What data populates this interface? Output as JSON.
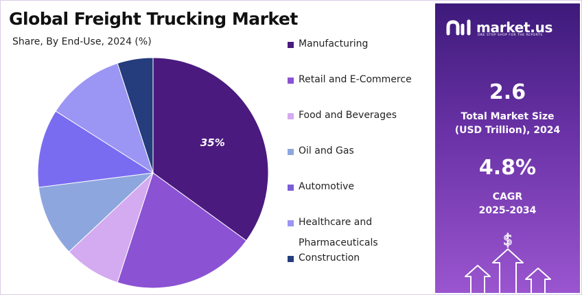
{
  "header": {
    "title": "Global Freight Trucking Market",
    "subtitle": "Share, By End-Use, 2024 (%)"
  },
  "brand": {
    "logo_text": "market.us",
    "tagline": "ONE STOP SHOP FOR THE REPORTS",
    "logo_icon": "market-us-logo-icon"
  },
  "stats": {
    "market_size_value": "2.6",
    "market_size_label_line1": "Total Market Size",
    "market_size_label_line2": "(USD Trillion), 2024",
    "cagr_value": "4.8%",
    "cagr_label_line1": "CAGR",
    "cagr_label_line2": "2025-2034"
  },
  "decoration": {
    "growth_icon": "dollar-growth-arrows-icon",
    "dollar_symbol": "$"
  },
  "colors": {
    "panel_top": "#3d1a7a",
    "panel_bottom": "#9a55cf",
    "label_text": "#ffffff"
  },
  "chart_data": {
    "type": "pie",
    "title": "Global Freight Trucking Market",
    "subtitle": "Share, By End-Use, 2024 (%)",
    "legend_position": "right",
    "start_angle_deg": 0,
    "direction": "clockwise",
    "slices": [
      {
        "label": "Manufacturing",
        "value": 35,
        "color": "#4b1a7e",
        "data_label": "35%"
      },
      {
        "label": "Retail and E-Commerce",
        "value": 20,
        "color": "#8b52d3",
        "data_label": ""
      },
      {
        "label": "Food and Beverages",
        "value": 8,
        "color": "#d4aaf0",
        "data_label": ""
      },
      {
        "label": "Oil and Gas",
        "value": 10,
        "color": "#8ea6de",
        "data_label": ""
      },
      {
        "label": "Automotive",
        "value": 11,
        "color": "#7a6cf0",
        "data_label": ""
      },
      {
        "label": "Healthcare and Pharmaceuticals",
        "value": 11,
        "color": "#9b95f3",
        "data_label": ""
      },
      {
        "label": "Construction",
        "value": 5,
        "color": "#253d7c",
        "data_label": ""
      }
    ],
    "legend": [
      {
        "label": "Manufacturing",
        "color": "#4b1a7e",
        "lines": [
          "Manufacturing"
        ]
      },
      {
        "label": "Retail and E-Commerce",
        "color": "#8b52d3",
        "lines": [
          "Retail and E-Commerce"
        ]
      },
      {
        "label": "Food and Beverages",
        "color": "#d4aaf0",
        "lines": [
          "Food and Beverages"
        ]
      },
      {
        "label": "Oil and Gas",
        "color": "#8ea6de",
        "lines": [
          "Oil and Gas"
        ]
      },
      {
        "label": "Automotive",
        "color": "#7a5ed8",
        "lines": [
          "Automotive"
        ]
      },
      {
        "label": "Healthcare and Pharmaceuticals",
        "color": "#9b95f3",
        "lines": [
          "Healthcare and",
          "Pharmaceuticals"
        ]
      },
      {
        "label": "Construction",
        "color": "#253d7c",
        "lines": [
          "Construction"
        ]
      }
    ]
  }
}
